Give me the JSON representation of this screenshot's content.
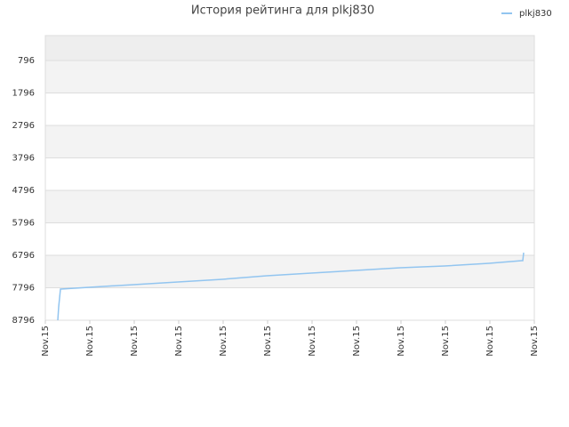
{
  "chart_data": {
    "type": "line",
    "title": "История рейтинга для plkj830",
    "x": [
      0.28,
      0.3,
      0.34,
      0.98,
      1.98,
      2.98,
      3.98,
      4.98,
      5.98,
      6.98,
      7.98,
      8.98,
      9.98,
      10.72,
      10.74,
      10.76
    ],
    "series": [
      {
        "name": "plkj830",
        "color": "#92c5f0",
        "values": [
          8796,
          8385,
          7837,
          7782,
          7700,
          7618,
          7536,
          7426,
          7344,
          7262,
          7180,
          7125,
          7043,
          6960,
          6960,
          6714
        ]
      }
    ],
    "xlim": [
      0,
      11
    ],
    "xticks": [
      {
        "value": 0,
        "label": "Nov.15"
      },
      {
        "value": 1,
        "label": "Nov.15"
      },
      {
        "value": 2,
        "label": "Nov.15"
      },
      {
        "value": 3,
        "label": "Nov.15"
      },
      {
        "value": 4,
        "label": "Nov.15"
      },
      {
        "value": 5,
        "label": "Nov.15"
      },
      {
        "value": 6,
        "label": "Nov.15"
      },
      {
        "value": 7,
        "label": "Nov.15"
      },
      {
        "value": 8,
        "label": "Nov.15"
      },
      {
        "value": 9,
        "label": "Nov.15"
      },
      {
        "value": 10,
        "label": "Nov.15"
      },
      {
        "value": 11,
        "label": "Nov.15"
      }
    ],
    "ylim": [
      8796,
      30
    ],
    "yticks": [
      796,
      1796,
      2796,
      3796,
      4796,
      5796,
      6796,
      7796,
      8796
    ],
    "grid": true,
    "legend": "top-right"
  }
}
